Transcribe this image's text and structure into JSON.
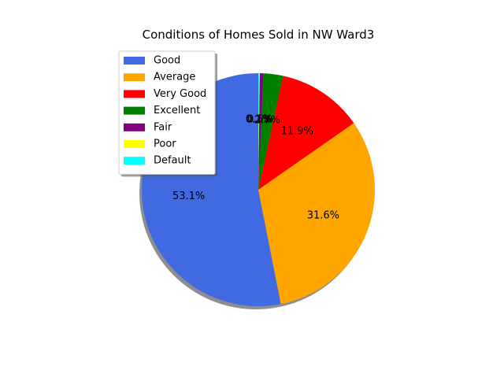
{
  "chart_data": {
    "type": "pie",
    "title": "Conditions of Homes Sold in NW Ward3",
    "labels": [
      "Good",
      "Average",
      "Very Good",
      "Excellent",
      "Fair",
      "Poor",
      "Default"
    ],
    "values": [
      53.1,
      31.6,
      11.9,
      2.7,
      0.5,
      0.1,
      0.1
    ],
    "value_labels": [
      "53.1%",
      "31.6%",
      "11.9%",
      "2.7%",
      "0.5%",
      "0.1%",
      "0.1%"
    ],
    "colors": [
      "#4169e1",
      "#ffa500",
      "#ff0000",
      "#008000",
      "#800080",
      "#ffff00",
      "#00ffff"
    ],
    "start_angle_deg": 90,
    "direction": "counterclockwise",
    "shadow": true,
    "legend": {
      "placement": "upper-left",
      "entries": [
        "Good",
        "Average",
        "Very Good",
        "Excellent",
        "Fair",
        "Poor",
        "Default"
      ]
    }
  }
}
